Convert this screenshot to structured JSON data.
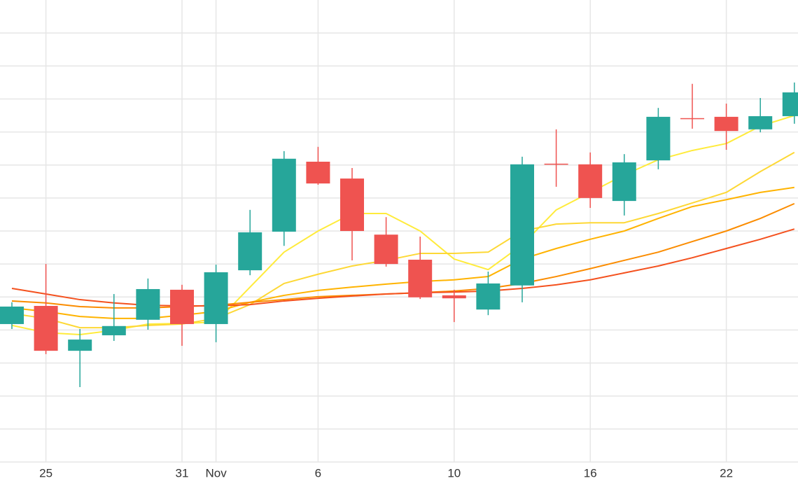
{
  "chart_data": {
    "type": "candlestick",
    "categories": [
      null,
      "25",
      null,
      null,
      null,
      "31",
      "Nov",
      null,
      null,
      "6",
      null,
      null,
      null,
      "10",
      null,
      null,
      null,
      "16",
      null,
      null,
      null,
      "22",
      null,
      null
    ],
    "open": [
      4.18,
      4.73,
      3.37,
      3.84,
      4.31,
      5.22,
      4.18,
      5.81,
      6.98,
      9.1,
      8.59,
      6.89,
      6.13,
      5.05,
      4.62,
      5.35,
      9.04,
      9.02,
      7.91,
      9.14,
      10.42,
      10.46,
      10.08,
      10.48
    ],
    "high": [
      4.84,
      6.0,
      4.03,
      5.09,
      5.56,
      5.37,
      5.98,
      7.64,
      9.42,
      9.55,
      8.91,
      7.42,
      6.83,
      5.22,
      5.77,
      9.25,
      10.08,
      9.38,
      9.33,
      10.73,
      11.46,
      10.86,
      11.03,
      11.5
    ],
    "low": [
      4.03,
      3.27,
      2.27,
      3.67,
      4.01,
      3.52,
      3.63,
      5.66,
      6.55,
      8.4,
      6.11,
      5.92,
      4.94,
      4.24,
      4.45,
      4.84,
      8.34,
      7.7,
      7.47,
      8.87,
      10.1,
      9.46,
      9.99,
      10.25
    ],
    "close": [
      4.71,
      3.37,
      3.71,
      4.12,
      5.24,
      4.18,
      5.75,
      6.96,
      9.19,
      8.44,
      7.0,
      6.0,
      4.99,
      4.96,
      5.41,
      9.02,
      9.02,
      8.0,
      9.08,
      10.46,
      10.39,
      10.03,
      10.48,
      11.2
    ],
    "up_color": "#26a69a",
    "down_color": "#ef5350",
    "series": [
      {
        "color": "#ffeb3b",
        "values": [
          4.14,
          3.92,
          3.86,
          3.99,
          4.18,
          4.2,
          4.24,
          5.3,
          6.36,
          7.0,
          7.53,
          7.53,
          7.0,
          6.15,
          5.83,
          6.58,
          7.64,
          8.17,
          8.7,
          9.16,
          9.44,
          9.65,
          10.18,
          10.5
        ]
      },
      {
        "color": "#fdd835",
        "values": [
          4.5,
          4.35,
          4.07,
          4.07,
          4.14,
          4.18,
          4.35,
          4.77,
          5.41,
          5.69,
          5.94,
          6.11,
          6.32,
          6.32,
          6.36,
          7.0,
          7.21,
          7.25,
          7.25,
          7.53,
          7.85,
          8.17,
          8.8,
          9.38
        ]
      },
      {
        "color": "#ffb300",
        "values": [
          4.67,
          4.56,
          4.41,
          4.35,
          4.35,
          4.45,
          4.56,
          4.84,
          5.05,
          5.2,
          5.3,
          5.39,
          5.47,
          5.52,
          5.62,
          6.15,
          6.47,
          6.75,
          7.0,
          7.38,
          7.74,
          7.95,
          8.17,
          8.32
        ]
      },
      {
        "color": "#fb8c00",
        "values": [
          4.88,
          4.82,
          4.71,
          4.67,
          4.67,
          4.71,
          4.75,
          4.84,
          4.92,
          5.01,
          5.05,
          5.09,
          5.13,
          5.18,
          5.26,
          5.41,
          5.62,
          5.86,
          6.11,
          6.36,
          6.68,
          7.0,
          7.38,
          7.83
        ]
      },
      {
        "color": "#f4511e",
        "values": [
          5.26,
          5.09,
          4.92,
          4.82,
          4.75,
          4.73,
          4.73,
          4.77,
          4.88,
          4.96,
          5.03,
          5.09,
          5.13,
          5.15,
          5.18,
          5.26,
          5.37,
          5.52,
          5.73,
          5.94,
          6.19,
          6.47,
          6.75,
          7.06
        ]
      }
    ],
    "ylim": [
      0,
      14
    ],
    "yticks": [
      1,
      2,
      3,
      4,
      5,
      6,
      7,
      8,
      9,
      10,
      11,
      12,
      13
    ],
    "grid": true
  }
}
